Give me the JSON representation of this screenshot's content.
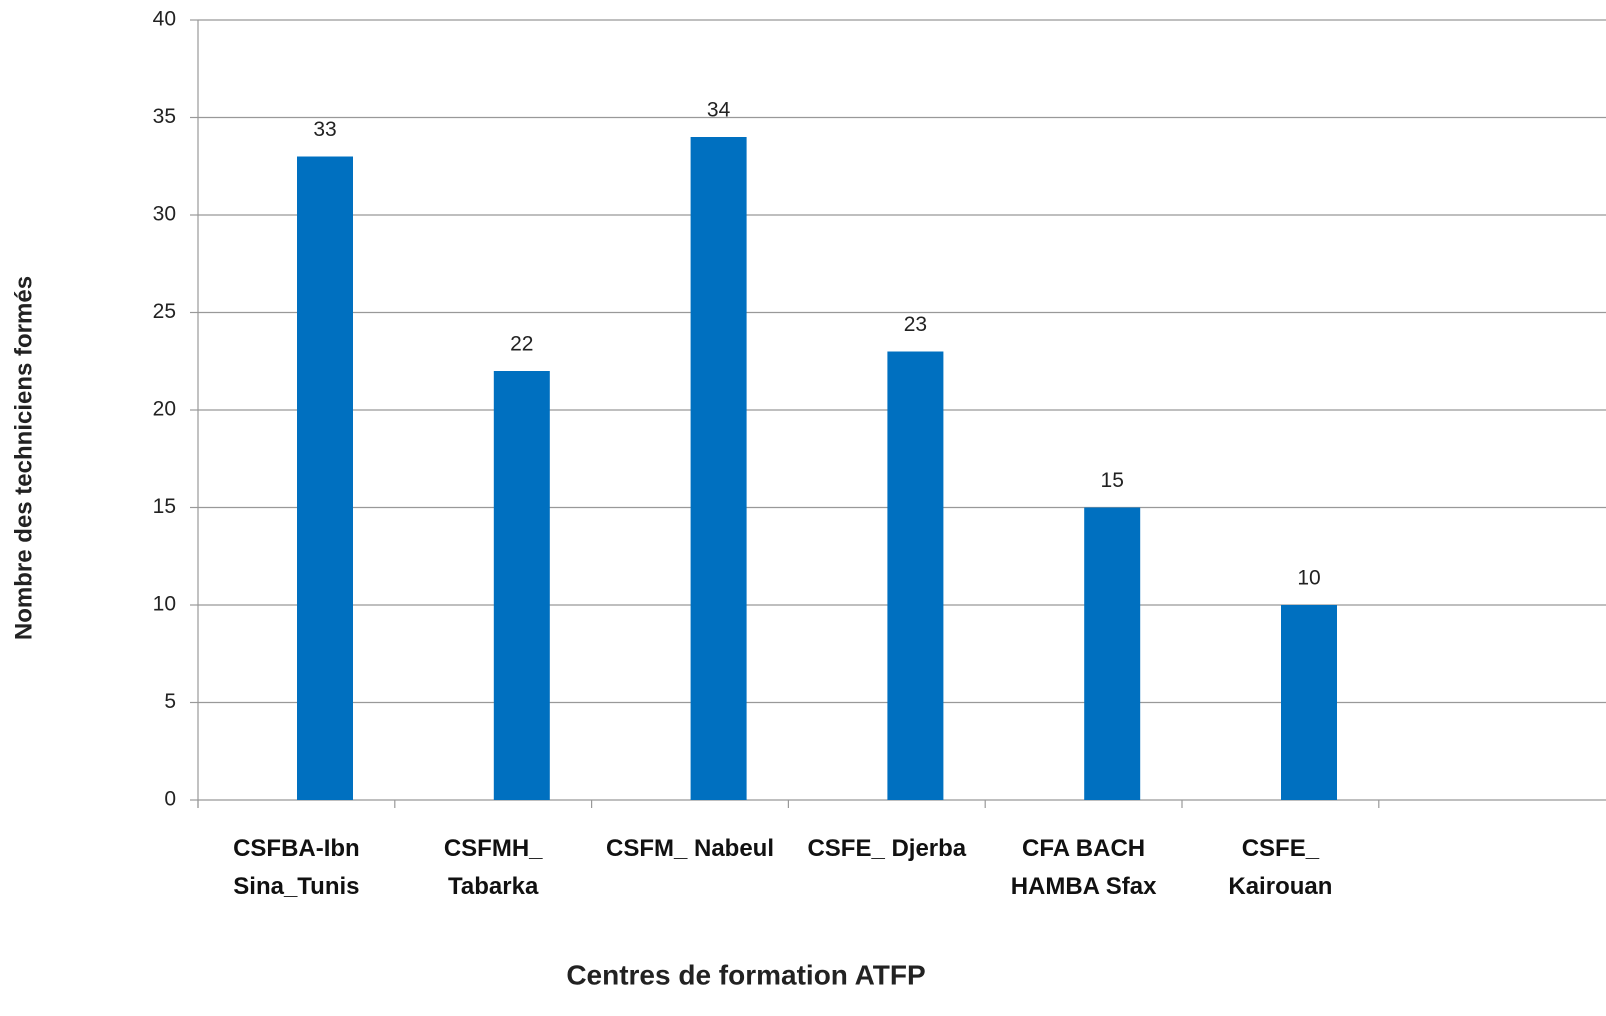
{
  "chart_data": {
    "type": "bar",
    "x_label": "Centres de formation ATFP",
    "y_label": "Nombre des techniciens formés",
    "categories": [
      "CSFBA-Ibn\nSina_Tunis",
      "CSFMH_\nTabarka",
      "CSFM_ Nabeul",
      "CSFE_ Djerba",
      "CFA BACH\nHAMBA Sfax",
      "CSFE_\nKairouan",
      null
    ],
    "values": [
      33,
      22,
      34,
      23,
      15,
      10,
      null
    ],
    "color": "#0070c0",
    "ylim": [
      0,
      40
    ],
    "yticks": [
      0,
      5,
      10,
      15,
      20,
      25,
      30,
      35,
      40
    ],
    "grid": true
  }
}
